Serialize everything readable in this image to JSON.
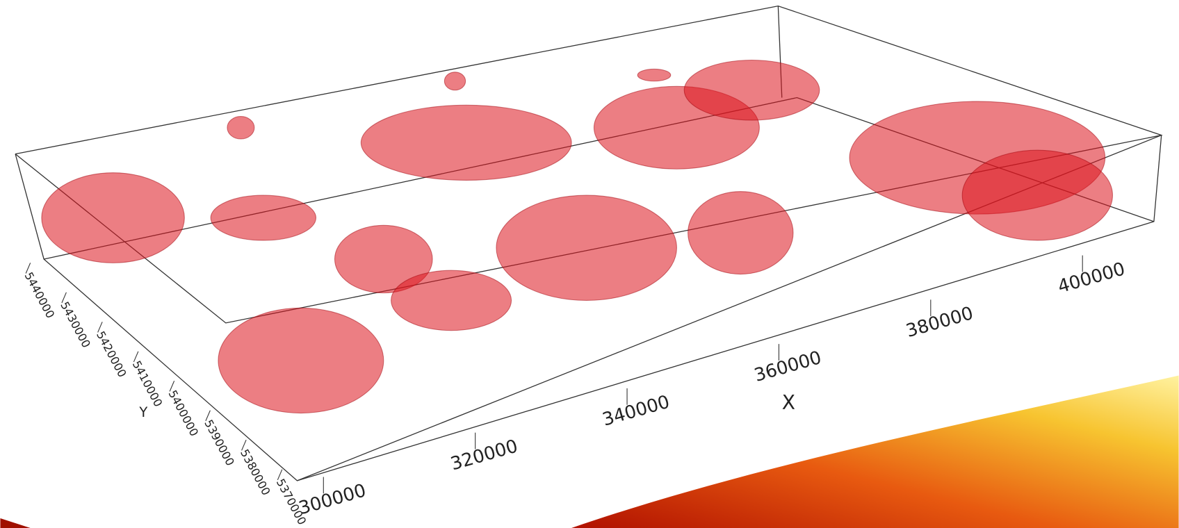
{
  "x_axis": {
    "label": "X",
    "ticks": [
      300000,
      320000,
      340000,
      360000,
      380000,
      400000
    ]
  },
  "y_axis": {
    "label": "Y",
    "ticks": [
      5370000,
      5380000,
      5390000,
      5400000,
      5410000,
      5420000,
      5430000,
      5440000
    ]
  }
}
